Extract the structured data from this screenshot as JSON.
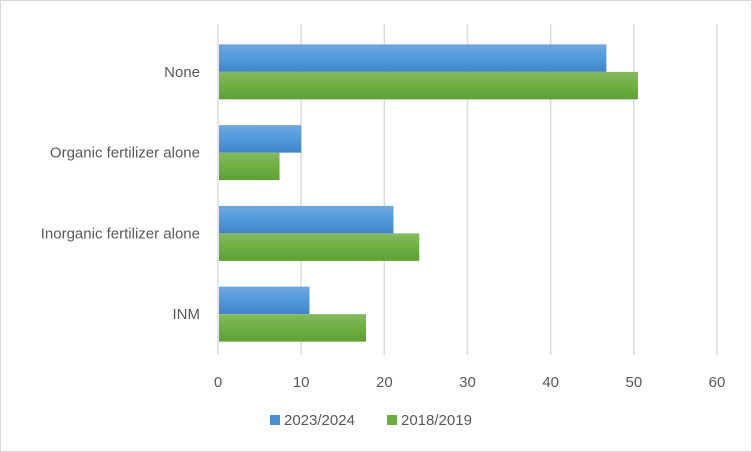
{
  "chart_data": {
    "type": "bar",
    "orientation": "horizontal",
    "title": "",
    "xlabel": "",
    "ylabel": "",
    "categories": [
      "None",
      "Organic fertilizer alone",
      "Inorganic fertilizer alone",
      "INM"
    ],
    "series": [
      {
        "name": "2023/2024",
        "color": "#4a8fd6",
        "values": [
          46.7,
          10.0,
          21.1,
          11.0
        ]
      },
      {
        "name": "2018/2019",
        "color": "#6aac3e",
        "values": [
          50.5,
          7.4,
          24.2,
          17.8
        ]
      }
    ],
    "xlim": [
      0,
      60
    ],
    "xticks": [
      0,
      10,
      20,
      30,
      40,
      50,
      60
    ],
    "grid": true,
    "legend_position": "bottom"
  }
}
